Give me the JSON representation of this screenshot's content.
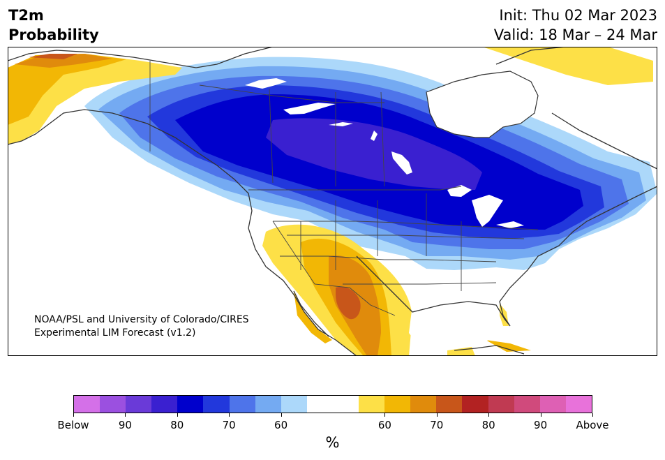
{
  "header": {
    "title_line1": "T2m",
    "title_line2": "Probability",
    "init": "Init: Thu 02 Mar 2023",
    "valid": "Valid: 18 Mar – 24 Mar"
  },
  "credit": {
    "line1": "NOAA/PSL and University of Colorado/CIRES",
    "line2": "Experimental LIM Forecast (v1.2)"
  },
  "colorbar": {
    "colors": [
      "#d470e8",
      "#9b50e0",
      "#6a3ad8",
      "#3a20d0",
      "#0000cc",
      "#2238dc",
      "#4e74ea",
      "#74aaf2",
      "#acd8fa",
      "#ffffff",
      "#ffffff",
      "#fde047",
      "#f2b705",
      "#e08b0c",
      "#c8561a",
      "#b22222",
      "#c03a52",
      "#d04a7c",
      "#de60b4",
      "#e872da"
    ],
    "tick_labels": [
      "Below",
      "90",
      "80",
      "70",
      "60",
      "60",
      "70",
      "80",
      "90",
      "Above"
    ],
    "unit": "%"
  }
}
